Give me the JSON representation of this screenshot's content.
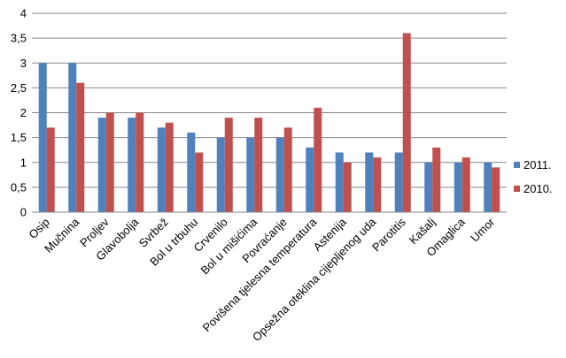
{
  "chart_data": {
    "type": "bar",
    "categories": [
      "Osip",
      "Mučnina",
      "Proljev",
      "Glavobolja",
      "Svrbež",
      "Bol u trbuhu",
      "Crvenilo",
      "Bol u mišićima",
      "Povraćanje",
      "Povišena tjelesna temperatura",
      "Astenija",
      "Opsežna oteklina cijepljenog uda",
      "Parotitis",
      "Kašalj",
      "Omaglica",
      "Umor"
    ],
    "series": [
      {
        "name": "2011.",
        "color": "#4f81bd",
        "values": [
          3.0,
          3.0,
          1.9,
          1.9,
          1.7,
          1.6,
          1.5,
          1.5,
          1.5,
          1.3,
          1.2,
          1.2,
          1.2,
          1.0,
          1.0,
          1.0
        ]
      },
      {
        "name": "2010.",
        "color": "#c0504d",
        "values": [
          1.7,
          2.6,
          2.0,
          2.0,
          1.8,
          1.2,
          1.9,
          1.9,
          1.7,
          2.1,
          1.0,
          1.1,
          3.6,
          1.3,
          1.1,
          0.9
        ]
      }
    ],
    "yticks": [
      "0",
      "0,5",
      "1",
      "1,5",
      "2",
      "2,5",
      "3",
      "3,5",
      "4"
    ],
    "ylim": [
      0,
      4
    ],
    "grid": true,
    "legend_position": "right"
  }
}
